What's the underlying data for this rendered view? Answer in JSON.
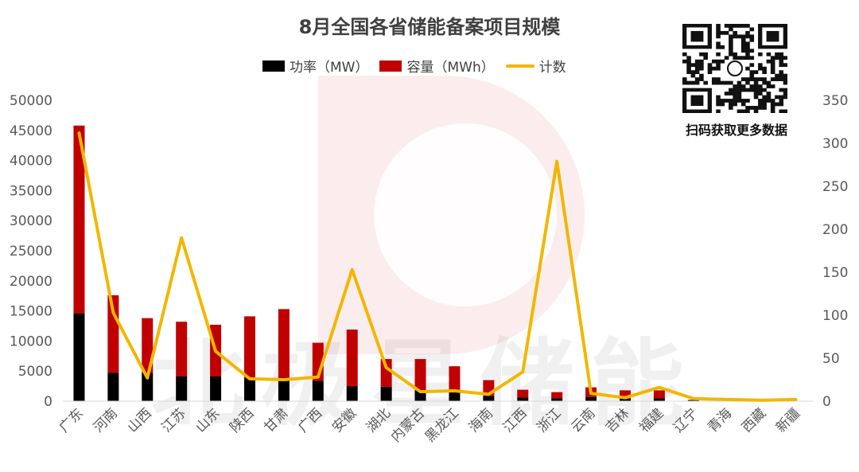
{
  "title": "8月全国各省储能备案项目规模",
  "legend": {
    "power_label": "功率（MW）",
    "capacity_label": "容量（MWh）",
    "count_label": "计数"
  },
  "qr_caption": "扫码获取更多数据",
  "watermark_text": "北极星储能",
  "colors": {
    "power": "#000000",
    "capacity": "#c00000",
    "count": "#f2b600",
    "axis_text": "#595959",
    "grid": "#d9d9d9"
  },
  "chart_data": {
    "type": "bar",
    "stacked": true,
    "categories": [
      "广东",
      "河南",
      "山西",
      "江苏",
      "山东",
      "陕西",
      "甘肃",
      "广西",
      "安徽",
      "湖北",
      "内蒙古",
      "黑龙江",
      "海南",
      "江西",
      "浙江",
      "云南",
      "吉林",
      "福建",
      "辽宁",
      "青海",
      "西藏",
      "新疆"
    ],
    "series": [
      {
        "name": "功率（MW）",
        "axis": "left",
        "values": [
          14600,
          4700,
          4700,
          4100,
          4100,
          3900,
          3900,
          3400,
          2500,
          2400,
          1800,
          1500,
          900,
          600,
          500,
          700,
          400,
          500,
          200,
          100,
          0,
          50
        ]
      },
      {
        "name": "容量（MWh）",
        "axis": "left",
        "values": [
          31200,
          12900,
          9100,
          9100,
          8600,
          10200,
          11400,
          6300,
          9400,
          4600,
          5200,
          4300,
          2600,
          1300,
          1000,
          1600,
          1400,
          1300,
          0,
          0,
          0,
          0
        ]
      },
      {
        "name": "计数",
        "axis": "right",
        "type": "line",
        "values": [
          312,
          103,
          27,
          190,
          58,
          26,
          25,
          28,
          153,
          39,
          11,
          12,
          8,
          34,
          279,
          9,
          4,
          16,
          3,
          2,
          1,
          2
        ]
      }
    ],
    "y_left": {
      "min": 0,
      "max": 50000,
      "ticks": [
        0,
        5000,
        10000,
        15000,
        20000,
        25000,
        30000,
        35000,
        40000,
        45000,
        50000
      ]
    },
    "y_right": {
      "min": 0,
      "max": 350,
      "ticks": [
        0,
        50,
        100,
        150,
        200,
        250,
        300,
        350
      ]
    },
    "legend_position": "top",
    "grid": false
  }
}
